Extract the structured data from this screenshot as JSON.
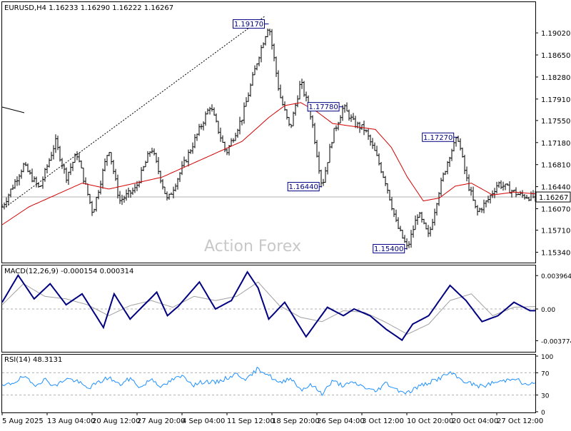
{
  "colors": {
    "price_bar": "#000000",
    "ma_line": "#d40000",
    "macd_line": "#000080",
    "signal_line": "#a0a0a0",
    "rsi_line": "#1e90ff",
    "label_border": "#000080",
    "frame": "#000000",
    "watermark": "#c8c8c8"
  },
  "watermark": "Action Forex",
  "chart_data": [
    {
      "type": "candlestick",
      "title": "EURUSD,H4  1.16233 1.16290 1.16222 1.16267",
      "last_price": 1.16267,
      "y_ticks": [
        1.1534,
        1.1571,
        1.1607,
        1.1644,
        1.1681,
        1.1718,
        1.1755,
        1.1791,
        1.1828,
        1.1865,
        1.1902
      ],
      "y_tick_labels": [
        "1.15340",
        "1.15710",
        "1.16070",
        "1.16440",
        "1.16810",
        "1.17180",
        "1.17550",
        "1.17910",
        "1.18280",
        "1.18650",
        "1.19020"
      ],
      "last_price_label": "1.16267",
      "x_labels": [
        "5 Aug 2025",
        "13 Aug 04:00",
        "20 Aug 12:00",
        "27 Aug 20:00",
        "4 Sep 04:00",
        "11 Sep 12:00",
        "18 Sep 20:00",
        "26 Sep 04:00",
        "3 Oct 12:00",
        "10 Oct 20:00",
        "20 Oct 04:00",
        "27 Oct 12:00"
      ],
      "ylim": [
        1.1519,
        1.195
      ],
      "annotations": [
        {
          "label": "1.19170",
          "value": 1.1917
        },
        {
          "label": "1.17780",
          "value": 1.1778
        },
        {
          "label": "1.16440",
          "value": 1.1644
        },
        {
          "label": "1.17270",
          "value": 1.1727
        },
        {
          "label": "1.15400",
          "value": 1.154
        }
      ],
      "series": [
        {
          "name": "EURUSD H4 (approx. swing path)",
          "points": [
            [
              0.0,
              1.161
            ],
            [
              0.04,
              1.168
            ],
            [
              0.07,
              1.164
            ],
            [
              0.1,
              1.172
            ],
            [
              0.12,
              1.166
            ],
            [
              0.14,
              1.17
            ],
            [
              0.17,
              1.16
            ],
            [
              0.2,
              1.171
            ],
            [
              0.22,
              1.162
            ],
            [
              0.25,
              1.164
            ],
            [
              0.28,
              1.171
            ],
            [
              0.31,
              1.162
            ],
            [
              0.33,
              1.166
            ],
            [
              0.36,
              1.172
            ],
            [
              0.39,
              1.178
            ],
            [
              0.42,
              1.17
            ],
            [
              0.45,
              1.176
            ],
            [
              0.48,
              1.186
            ],
            [
              0.5,
              1.1917
            ],
            [
              0.52,
              1.18
            ],
            [
              0.54,
              1.174
            ],
            [
              0.56,
              1.182
            ],
            [
              0.58,
              1.176
            ],
            [
              0.6,
              1.1644
            ],
            [
              0.62,
              1.173
            ],
            [
              0.64,
              1.1778
            ],
            [
              0.66,
              1.175
            ],
            [
              0.68,
              1.174
            ],
            [
              0.7,
              1.17
            ],
            [
              0.72,
              1.165
            ],
            [
              0.74,
              1.158
            ],
            [
              0.76,
              1.154
            ],
            [
              0.78,
              1.16
            ],
            [
              0.8,
              1.156
            ],
            [
              0.82,
              1.164
            ],
            [
              0.84,
              1.17
            ],
            [
              0.855,
              1.1727
            ],
            [
              0.87,
              1.166
            ],
            [
              0.89,
              1.16
            ],
            [
              0.91,
              1.162
            ],
            [
              0.93,
              1.165
            ],
            [
              0.95,
              1.164
            ],
            [
              0.97,
              1.163
            ],
            [
              0.99,
              1.1627
            ]
          ]
        },
        {
          "name": "Moving average",
          "points": [
            [
              0.0,
              1.158
            ],
            [
              0.05,
              1.161
            ],
            [
              0.1,
              1.163
            ],
            [
              0.15,
              1.165
            ],
            [
              0.2,
              1.164
            ],
            [
              0.25,
              1.165
            ],
            [
              0.3,
              1.166
            ],
            [
              0.35,
              1.168
            ],
            [
              0.4,
              1.17
            ],
            [
              0.45,
              1.172
            ],
            [
              0.5,
              1.176
            ],
            [
              0.53,
              1.178
            ],
            [
              0.56,
              1.1785
            ],
            [
              0.59,
              1.177
            ],
            [
              0.62,
              1.175
            ],
            [
              0.66,
              1.1745
            ],
            [
              0.7,
              1.174
            ],
            [
              0.73,
              1.171
            ],
            [
              0.76,
              1.166
            ],
            [
              0.79,
              1.162
            ],
            [
              0.82,
              1.1625
            ],
            [
              0.85,
              1.1645
            ],
            [
              0.88,
              1.165
            ],
            [
              0.92,
              1.163
            ],
            [
              0.96,
              1.1635
            ],
            [
              1.0,
              1.1632
            ]
          ]
        }
      ]
    },
    {
      "type": "line",
      "title": "MACD(12,26,9) -0.000154 0.000314",
      "y_tick_labels": [
        "0.003964",
        "0.00",
        "-0.003774"
      ],
      "y_ticks": [
        0.003964,
        0.0,
        -0.003774
      ],
      "ylim": [
        -0.005,
        0.005
      ],
      "series": [
        {
          "name": "MACD",
          "points": [
            [
              0.0,
              0.0008
            ],
            [
              0.03,
              0.004
            ],
            [
              0.06,
              0.0012
            ],
            [
              0.09,
              0.003
            ],
            [
              0.12,
              0.0005
            ],
            [
              0.15,
              0.0018
            ],
            [
              0.19,
              -0.0022
            ],
            [
              0.21,
              0.0018
            ],
            [
              0.24,
              -0.0012
            ],
            [
              0.29,
              0.002
            ],
            [
              0.31,
              -0.0008
            ],
            [
              0.33,
              0.0003
            ],
            [
              0.37,
              0.0032
            ],
            [
              0.4,
              0.0
            ],
            [
              0.43,
              0.001
            ],
            [
              0.46,
              0.0044
            ],
            [
              0.48,
              0.0025
            ],
            [
              0.5,
              -0.0012
            ],
            [
              0.53,
              0.0008
            ],
            [
              0.57,
              -0.0033
            ],
            [
              0.61,
              0.0002
            ],
            [
              0.64,
              -0.0008
            ],
            [
              0.66,
              0.0
            ],
            [
              0.69,
              -0.0008
            ],
            [
              0.72,
              -0.0024
            ],
            [
              0.75,
              -0.0037
            ],
            [
              0.77,
              -0.0018
            ],
            [
              0.8,
              -0.0008
            ],
            [
              0.84,
              0.0028
            ],
            [
              0.87,
              0.001
            ],
            [
              0.9,
              -0.0015
            ],
            [
              0.93,
              -0.0008
            ],
            [
              0.96,
              0.0008
            ],
            [
              0.99,
              -0.0002
            ]
          ]
        },
        {
          "name": "Signal",
          "points": [
            [
              0.0,
              0.0005
            ],
            [
              0.04,
              0.003
            ],
            [
              0.08,
              0.0015
            ],
            [
              0.12,
              0.0012
            ],
            [
              0.16,
              0.0005
            ],
            [
              0.2,
              -0.0008
            ],
            [
              0.24,
              0.0004
            ],
            [
              0.28,
              0.001
            ],
            [
              0.32,
              0.0002
            ],
            [
              0.36,
              0.0015
            ],
            [
              0.4,
              0.001
            ],
            [
              0.44,
              0.0015
            ],
            [
              0.48,
              0.0032
            ],
            [
              0.52,
              0.0004
            ],
            [
              0.56,
              -0.001
            ],
            [
              0.6,
              -0.0015
            ],
            [
              0.64,
              -0.0002
            ],
            [
              0.68,
              -0.0004
            ],
            [
              0.72,
              -0.0016
            ],
            [
              0.76,
              -0.003
            ],
            [
              0.8,
              -0.0018
            ],
            [
              0.84,
              0.001
            ],
            [
              0.88,
              0.0018
            ],
            [
              0.92,
              -0.0008
            ],
            [
              0.96,
              0.0002
            ],
            [
              1.0,
              0.0003
            ]
          ]
        }
      ]
    },
    {
      "type": "line",
      "title": "RSI(14) 48.3131",
      "y_tick_labels": [
        "100",
        "70",
        "30",
        "0"
      ],
      "y_ticks": [
        100,
        70,
        30,
        0
      ],
      "reference_levels": [
        70,
        30
      ],
      "ylim": [
        0,
        100
      ],
      "series": [
        {
          "name": "RSI(14)",
          "points": [
            [
              0.0,
              45
            ],
            [
              0.02,
              52
            ],
            [
              0.04,
              63
            ],
            [
              0.06,
              48
            ],
            [
              0.08,
              58
            ],
            [
              0.1,
              46
            ],
            [
              0.12,
              60
            ],
            [
              0.14,
              55
            ],
            [
              0.16,
              42
            ],
            [
              0.18,
              52
            ],
            [
              0.2,
              62
            ],
            [
              0.22,
              48
            ],
            [
              0.24,
              60
            ],
            [
              0.26,
              43
            ],
            [
              0.28,
              60
            ],
            [
              0.3,
              44
            ],
            [
              0.32,
              58
            ],
            [
              0.34,
              64
            ],
            [
              0.36,
              48
            ],
            [
              0.38,
              55
            ],
            [
              0.4,
              52
            ],
            [
              0.42,
              60
            ],
            [
              0.44,
              68
            ],
            [
              0.46,
              58
            ],
            [
              0.48,
              78
            ],
            [
              0.5,
              66
            ],
            [
              0.52,
              50
            ],
            [
              0.54,
              62
            ],
            [
              0.56,
              40
            ],
            [
              0.58,
              48
            ],
            [
              0.6,
              33
            ],
            [
              0.62,
              55
            ],
            [
              0.64,
              47
            ],
            [
              0.66,
              52
            ],
            [
              0.68,
              44
            ],
            [
              0.7,
              36
            ],
            [
              0.72,
              52
            ],
            [
              0.74,
              40
            ],
            [
              0.76,
              34
            ],
            [
              0.78,
              45
            ],
            [
              0.8,
              52
            ],
            [
              0.82,
              60
            ],
            [
              0.84,
              70
            ],
            [
              0.86,
              58
            ],
            [
              0.88,
              50
            ],
            [
              0.9,
              45
            ],
            [
              0.92,
              52
            ],
            [
              0.94,
              55
            ],
            [
              0.96,
              62
            ],
            [
              0.98,
              48
            ],
            [
              0.99,
              50
            ]
          ]
        }
      ]
    }
  ]
}
